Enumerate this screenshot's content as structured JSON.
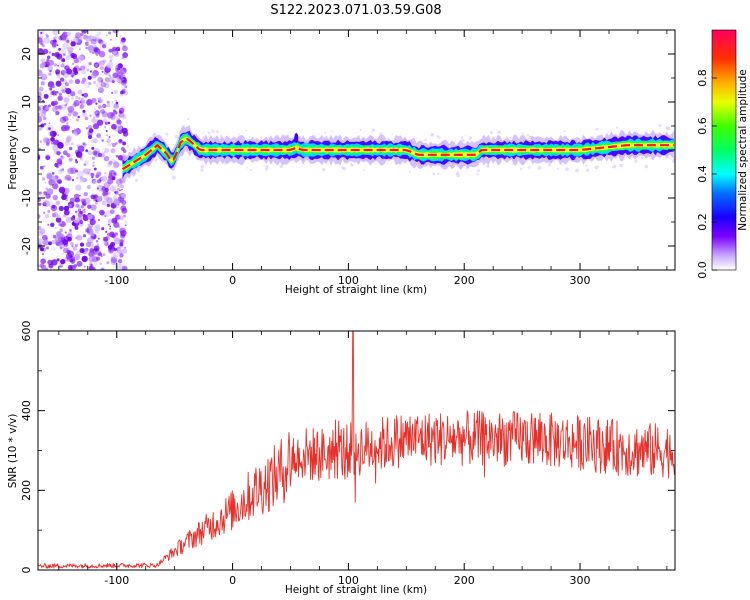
{
  "title": "S122.2023.071.03.59.G08",
  "colors": {
    "snr_line": "#e8302a",
    "spectrum_line": "#ff1010"
  },
  "chart_data": [
    {
      "type": "heatmap",
      "xlabel": "Height of straight line (km)",
      "ylabel": "Frequency (Hz)",
      "xlim": [
        -168,
        382
      ],
      "ylim": [
        -25,
        25
      ],
      "x_ticks": [
        -100,
        0,
        100,
        200,
        300
      ],
      "y_ticks": [
        -20,
        -10,
        0,
        10,
        20
      ],
      "colorbar": {
        "label": "Normalized spectral amplitude",
        "range": [
          0,
          1
        ],
        "ticks": [
          0.0,
          0.2,
          0.4,
          0.6,
          0.8
        ],
        "colormap": [
          "#ffffff",
          "#7a00ff",
          "#0000ff",
          "#00ffff",
          "#00ff00",
          "#ffff00",
          "#ff8800",
          "#ff0044"
        ]
      },
      "noise_region_x": [
        -168,
        -92
      ],
      "peak_frequency_trace": {
        "x": [
          -95,
          -85,
          -75,
          -65,
          -58,
          -52,
          -48,
          -45,
          -40,
          -35,
          -28,
          -20,
          0,
          50,
          55,
          60,
          100,
          150,
          160,
          210,
          215,
          250,
          300,
          340,
          382
        ],
        "y": [
          -4,
          -2.5,
          -1,
          1,
          -0.5,
          -2.5,
          -0.5,
          1.5,
          2.5,
          1.5,
          0,
          0,
          0,
          0,
          0.5,
          0,
          0,
          0,
          -1,
          -1,
          0,
          0,
          0,
          1,
          1
        ]
      }
    },
    {
      "type": "line",
      "xlabel": "Height of straight line (km)",
      "ylabel": "SNR (10 * v/v)",
      "xlim": [
        -168,
        382
      ],
      "ylim": [
        0,
        600
      ],
      "x_ticks": [
        -100,
        0,
        100,
        200,
        300
      ],
      "y_ticks": [
        0,
        200,
        400,
        600
      ],
      "series": [
        {
          "trend_x": [
            -168,
            -65,
            -60,
            -40,
            -20,
            0,
            20,
            40,
            50,
            60,
            80,
            100,
            120,
            150,
            200,
            250,
            300,
            350,
            382
          ],
          "trend_y": [
            10,
            12,
            25,
            70,
            110,
            150,
            200,
            240,
            280,
            290,
            290,
            300,
            310,
            330,
            330,
            330,
            320,
            300,
            300
          ],
          "spike": {
            "x": 104,
            "y": 600
          }
        }
      ]
    }
  ]
}
